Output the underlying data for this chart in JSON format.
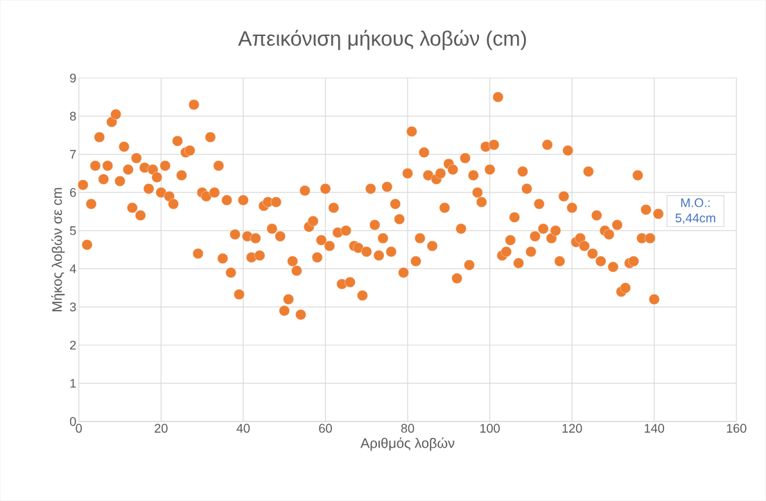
{
  "chart_data": {
    "type": "scatter",
    "title": "Απεικόνιση μήκους λοβών (cm)",
    "xlabel": "Αριθμός λοβών",
    "ylabel": "Μήκος λοβών σε cm",
    "x": [
      1,
      2,
      3,
      4,
      5,
      6,
      7,
      8,
      9,
      10,
      11,
      12,
      13,
      14,
      15,
      16,
      17,
      18,
      19,
      20,
      21,
      22,
      23,
      24,
      25,
      26,
      27,
      28,
      29,
      30,
      31,
      32,
      33,
      34,
      35,
      36,
      37,
      38,
      39,
      40,
      41,
      42,
      43,
      44,
      45,
      46,
      47,
      48,
      49,
      50,
      51,
      52,
      53,
      54,
      55,
      56,
      57,
      58,
      59,
      60,
      61,
      62,
      63,
      64,
      65,
      66,
      67,
      68,
      69,
      70,
      71,
      72,
      73,
      74,
      75,
      76,
      77,
      78,
      79,
      80,
      81,
      82,
      83,
      84,
      85,
      86,
      87,
      88,
      89,
      90,
      91,
      92,
      93,
      94,
      95,
      96,
      97,
      98,
      99,
      100,
      101,
      102,
      103,
      104,
      105,
      106,
      107,
      108,
      109,
      110,
      111,
      112,
      113,
      114,
      115,
      116,
      117,
      118,
      119,
      120,
      121,
      122,
      123,
      124,
      125,
      126,
      127,
      128,
      129,
      130,
      131,
      132,
      133,
      134,
      135,
      136,
      137,
      138,
      139,
      140,
      141
    ],
    "values": [
      6.2,
      4.63,
      5.7,
      6.7,
      7.45,
      6.35,
      6.7,
      7.85,
      8.05,
      6.3,
      7.2,
      6.6,
      5.6,
      6.9,
      5.4,
      6.65,
      6.1,
      6.6,
      6.4,
      6.0,
      6.7,
      5.9,
      5.7,
      7.35,
      6.45,
      7.05,
      7.1,
      8.3,
      4.4,
      6.0,
      5.9,
      7.45,
      6.0,
      6.7,
      4.27,
      5.8,
      3.9,
      4.9,
      3.33,
      5.8,
      4.85,
      4.3,
      4.8,
      4.35,
      5.65,
      5.75,
      5.05,
      5.75,
      4.85,
      2.9,
      3.2,
      4.2,
      3.95,
      2.8,
      6.05,
      5.1,
      5.25,
      4.3,
      4.75,
      6.1,
      4.6,
      5.6,
      4.95,
      3.6,
      5.0,
      3.65,
      4.6,
      4.55,
      3.3,
      4.45,
      6.1,
      5.15,
      4.35,
      4.8,
      6.15,
      4.45,
      5.7,
      5.3,
      3.9,
      6.5,
      7.6,
      4.2,
      4.8,
      7.05,
      6.45,
      4.6,
      6.35,
      6.5,
      5.6,
      6.75,
      6.6,
      3.75,
      5.05,
      6.9,
      4.1,
      6.45,
      6.0,
      5.75,
      7.2,
      6.6,
      7.25,
      8.5,
      4.35,
      4.45,
      4.75,
      5.35,
      4.15,
      6.55,
      6.1,
      4.45,
      4.85,
      5.7,
      5.05,
      7.25,
      4.8,
      5.0,
      4.2,
      5.9,
      7.1,
      5.6,
      4.7,
      4.8,
      4.6,
      6.55,
      4.4,
      5.4,
      4.2,
      5.0,
      4.9,
      4.05,
      5.15,
      3.4,
      3.5,
      4.15,
      4.2,
      6.45,
      4.8,
      5.55,
      4.8,
      3.2,
      5.44
    ],
    "color": "#ed7d31",
    "marker": "circle",
    "xlim": [
      0,
      160
    ],
    "xticks": [
      0,
      20,
      40,
      60,
      80,
      100,
      120,
      140,
      160
    ],
    "ylim": [
      0,
      9
    ],
    "yticks": [
      0,
      1,
      2,
      3,
      4,
      5,
      6,
      7,
      8,
      9
    ],
    "grid": true,
    "annotations": [
      {
        "text": "M.O.: 5,44cm",
        "x": 141,
        "y": 5.44
      }
    ]
  }
}
